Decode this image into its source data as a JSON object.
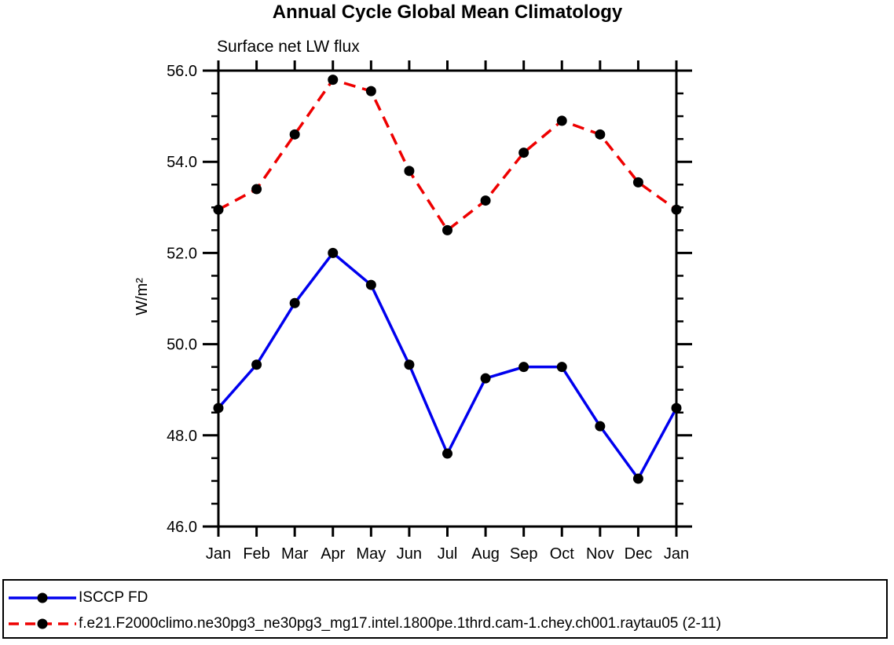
{
  "title": "Annual Cycle Global Mean Climatology",
  "subtitle": "Surface net LW flux",
  "y_axis_label": "W/m²",
  "chart_data": {
    "type": "line",
    "title": "Annual Cycle Global Mean Climatology",
    "subtitle": "Surface net LW flux",
    "xlabel": "",
    "ylabel": "W/m²",
    "categories": [
      "Jan",
      "Feb",
      "Mar",
      "Apr",
      "May",
      "Jun",
      "Jul",
      "Aug",
      "Sep",
      "Oct",
      "Nov",
      "Dec",
      "Jan"
    ],
    "ylim": [
      46.0,
      56.0
    ],
    "y_major_ticks": [
      46.0,
      48.0,
      50.0,
      52.0,
      54.0,
      56.0
    ],
    "y_major_tick_labels": [
      "46.0",
      "48.0",
      "50.0",
      "52.0",
      "54.0",
      "56.0"
    ],
    "y_minor_step": 0.5,
    "grid": false,
    "legend_position": "bottom-left-box",
    "marker": "filled-circle",
    "marker_color": "#000000",
    "axis_color": "#000000",
    "series": [
      {
        "name": "ISCCP FD",
        "color": "#0000ee",
        "line_style": "solid",
        "values": [
          48.6,
          49.55,
          50.9,
          52.0,
          51.3,
          49.55,
          47.6,
          49.25,
          49.5,
          49.5,
          48.2,
          47.05,
          48.6
        ]
      },
      {
        "name": "f.e21.F2000climo.ne30pg3_ne30pg3_mg17.intel.1800pe.1thrd.cam-1.chey.ch001.raytau05 (2-11)",
        "color": "#ee0000",
        "line_style": "dashed",
        "values": [
          52.95,
          53.4,
          54.6,
          55.8,
          55.55,
          53.8,
          52.5,
          53.15,
          54.2,
          54.9,
          54.6,
          53.55,
          52.95
        ]
      }
    ]
  },
  "legend": {
    "entries": [
      {
        "label": "ISCCP FD"
      },
      {
        "label": "f.e21.F2000climo.ne30pg3_ne30pg3_mg17.intel.1800pe.1thrd.cam-1.chey.ch001.raytau05 (2-11)"
      }
    ]
  }
}
